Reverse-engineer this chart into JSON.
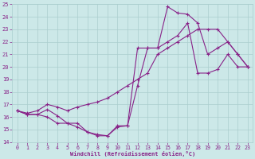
{
  "xlabel": "Windchill (Refroidissement éolien,°C)",
  "ylim": [
    14,
    25
  ],
  "xlim": [
    -0.5,
    23.5
  ],
  "yticks": [
    14,
    15,
    16,
    17,
    18,
    19,
    20,
    21,
    22,
    23,
    24,
    25
  ],
  "xticks": [
    0,
    1,
    2,
    3,
    4,
    5,
    6,
    7,
    8,
    9,
    10,
    11,
    12,
    13,
    14,
    15,
    16,
    17,
    18,
    19,
    20,
    21,
    22,
    23
  ],
  "bg_color": "#cce8e8",
  "grid_color": "#aacece",
  "line_color": "#882288",
  "line1_x": [
    0,
    1,
    2,
    3,
    4,
    5,
    6,
    7,
    8,
    9,
    10,
    11,
    12,
    13,
    14,
    15,
    16,
    17,
    18,
    19,
    20,
    21,
    22,
    23
  ],
  "line1_y": [
    16.5,
    16.2,
    16.2,
    16.6,
    16.1,
    15.5,
    15.5,
    14.8,
    14.6,
    14.5,
    15.3,
    15.3,
    18.5,
    21.5,
    21.5,
    24.8,
    24.3,
    24.2,
    23.5,
    21.0,
    21.5,
    22.0,
    21.0,
    20.0
  ],
  "line2_x": [
    0,
    1,
    2,
    3,
    4,
    5,
    6,
    7,
    8,
    9,
    10,
    11,
    12,
    13,
    14,
    15,
    16,
    17,
    18,
    19,
    20,
    21,
    22,
    23
  ],
  "line2_y": [
    16.5,
    16.3,
    16.5,
    17.0,
    16.8,
    16.5,
    16.8,
    17.0,
    17.2,
    17.5,
    18.0,
    18.5,
    19.0,
    19.5,
    21.0,
    21.5,
    22.0,
    22.5,
    23.0,
    23.0,
    23.0,
    22.0,
    21.0,
    20.0
  ],
  "line3_x": [
    0,
    1,
    2,
    3,
    4,
    5,
    6,
    7,
    8,
    9,
    10,
    11,
    12,
    13,
    14,
    15,
    16,
    17,
    18,
    19,
    20,
    21,
    22,
    23
  ],
  "line3_y": [
    16.5,
    16.2,
    16.2,
    16.0,
    15.5,
    15.5,
    15.2,
    14.8,
    14.5,
    14.5,
    15.2,
    15.3,
    21.5,
    21.5,
    21.5,
    22.0,
    22.5,
    23.5,
    19.5,
    19.5,
    19.8,
    21.0,
    20.0,
    20.0
  ]
}
